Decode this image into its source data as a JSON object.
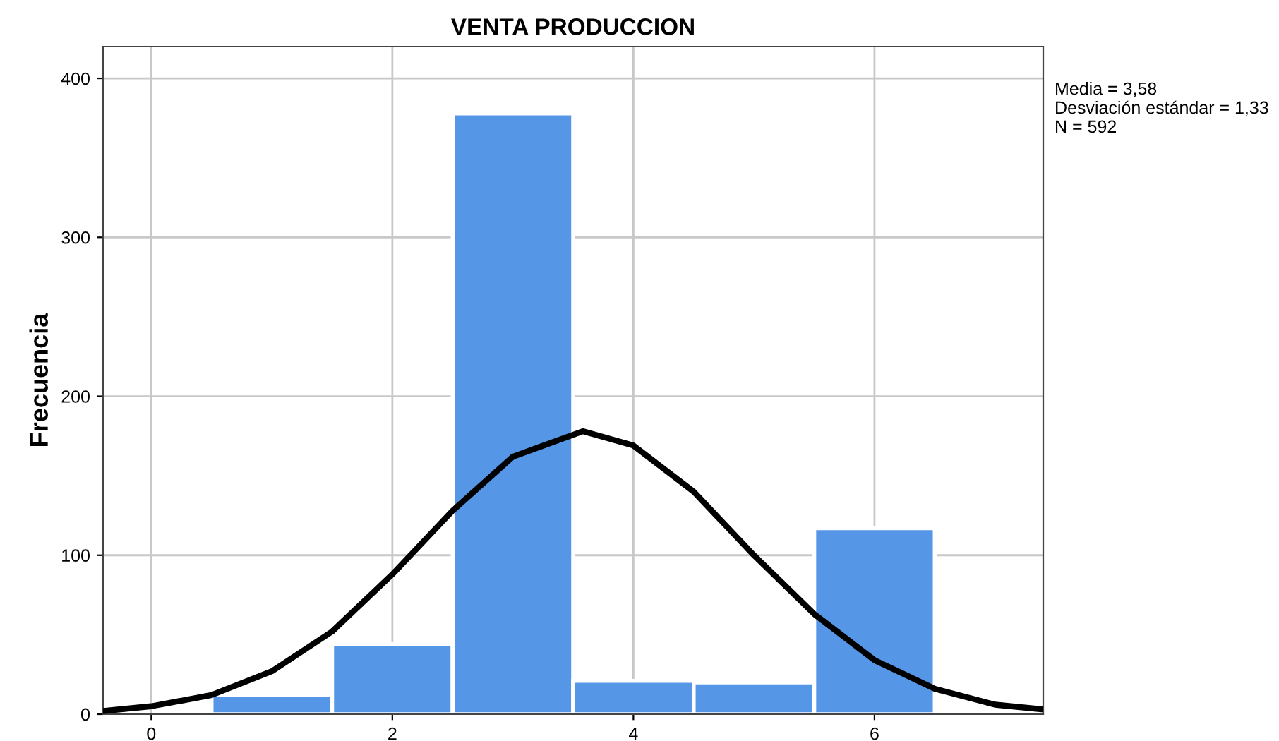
{
  "chart_data": {
    "type": "histogram",
    "title": "VENTA PRODUCCION",
    "ylabel": "Frecuencia",
    "annotations": [
      "Media = 3,58\nDesviación estándar = 1,33\nN = 592"
    ],
    "series": [
      {
        "color": "#5596e6",
        "bins": [
          0.5,
          1.5,
          2.5,
          3.5,
          4.5,
          5.5,
          6.5
        ],
        "values": [
          12,
          44,
          378,
          21,
          20,
          117
        ]
      },
      {
        "type": "line",
        "color": "#000000",
        "x": [
          -0.4,
          0,
          0.5,
          1,
          1.5,
          2,
          2.5,
          3,
          3.58,
          4,
          4.5,
          5,
          5.5,
          6,
          6.5,
          7,
          7.4
        ],
        "values": [
          2,
          5,
          12,
          27,
          52,
          88,
          128,
          162,
          178,
          169,
          140,
          100,
          63,
          34,
          16,
          6,
          3
        ]
      }
    ],
    "xlim": [
      -0.4,
      7.4
    ],
    "ylim": [
      0,
      420
    ],
    "xticks": [
      0,
      2,
      4,
      6
    ],
    "yticks": [
      0,
      100,
      200,
      300,
      400
    ],
    "grid": true,
    "legend": false
  }
}
